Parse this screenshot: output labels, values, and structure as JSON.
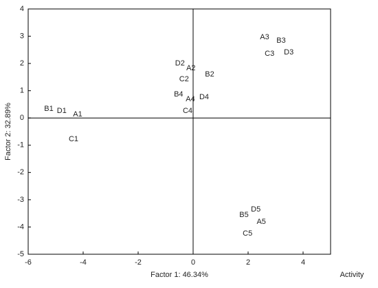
{
  "chart_data": {
    "type": "scatter",
    "x_label": "Factor 1: 46.34%",
    "y_label": "Factor 2: 32.89%",
    "annotation": "Activity",
    "point_labels": [
      "B1",
      "D1",
      "A1",
      "C1",
      "D2",
      "A2",
      "C2",
      "B2",
      "B4",
      "A4",
      "D4",
      "C4",
      "A3",
      "B3",
      "C3",
      "D3",
      "D5",
      "B5",
      "A5",
      "C5"
    ],
    "x": [
      -5.25,
      -4.78,
      -4.2,
      -4.35,
      -0.48,
      -0.08,
      -0.33,
      0.6,
      -0.53,
      -0.1,
      0.4,
      -0.2,
      2.6,
      3.2,
      2.78,
      3.48,
      2.28,
      1.85,
      2.48,
      1.98
    ],
    "values": [
      0.33,
      0.25,
      0.13,
      -0.78,
      2.0,
      1.82,
      1.42,
      1.6,
      0.86,
      0.68,
      0.76,
      0.25,
      2.96,
      2.83,
      2.35,
      2.4,
      -3.36,
      -3.56,
      -3.81,
      -4.24
    ],
    "color": "#222222",
    "xlim": [
      -6,
      5
    ],
    "xticks": [
      -6,
      -4,
      -2,
      0,
      2,
      4
    ],
    "ylim": [
      -5,
      4
    ],
    "yticks": [
      -5,
      -4,
      -3,
      -2,
      -1,
      0,
      1,
      2,
      3,
      4
    ],
    "zero_lines": true
  }
}
